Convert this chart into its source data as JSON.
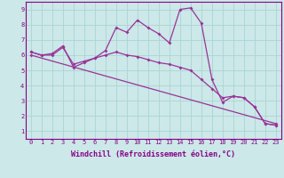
{
  "bg_color": "#cce8e8",
  "line_color": "#993399",
  "xlabel": "Windchill (Refroidissement éolien,°C)",
  "ylim": [
    0.5,
    9.5
  ],
  "xlim": [
    -0.5,
    23.5
  ],
  "yticks": [
    1,
    2,
    3,
    4,
    5,
    6,
    7,
    8,
    9
  ],
  "xticks": [
    0,
    1,
    2,
    3,
    4,
    5,
    6,
    7,
    8,
    9,
    10,
    11,
    12,
    13,
    14,
    15,
    16,
    17,
    18,
    19,
    20,
    21,
    22,
    23
  ],
  "line1_x": [
    0,
    1,
    2,
    3,
    4,
    5,
    6,
    7,
    8,
    9,
    10,
    11,
    12,
    13,
    14,
    15,
    16,
    17,
    18,
    19,
    20,
    21,
    22,
    23
  ],
  "line1_y": [
    6.2,
    6.0,
    6.1,
    6.6,
    5.2,
    5.5,
    5.8,
    6.3,
    7.8,
    7.5,
    8.3,
    7.8,
    7.4,
    6.8,
    9.0,
    9.1,
    8.1,
    4.4,
    2.9,
    3.3,
    3.2,
    2.6,
    1.5,
    1.4
  ],
  "line2_x": [
    0,
    1,
    2,
    3,
    4,
    5,
    6,
    7,
    8,
    9,
    10,
    11,
    12,
    13,
    14,
    15,
    16,
    17,
    18,
    19,
    20,
    21,
    22,
    23
  ],
  "line2_y": [
    6.2,
    6.0,
    6.0,
    6.5,
    5.4,
    5.6,
    5.8,
    6.0,
    6.2,
    6.0,
    5.9,
    5.7,
    5.5,
    5.4,
    5.2,
    5.0,
    4.4,
    3.8,
    3.2,
    3.3,
    3.2,
    2.6,
    1.5,
    1.4
  ],
  "line3_x": [
    0,
    23
  ],
  "line3_y": [
    6.0,
    1.5
  ],
  "marker": "D",
  "markersize": 2.0,
  "linewidth": 0.9,
  "xlabel_fontsize": 6.0,
  "tick_fontsize": 5.0,
  "text_color": "#880088",
  "grid_color": "#aad4d4"
}
